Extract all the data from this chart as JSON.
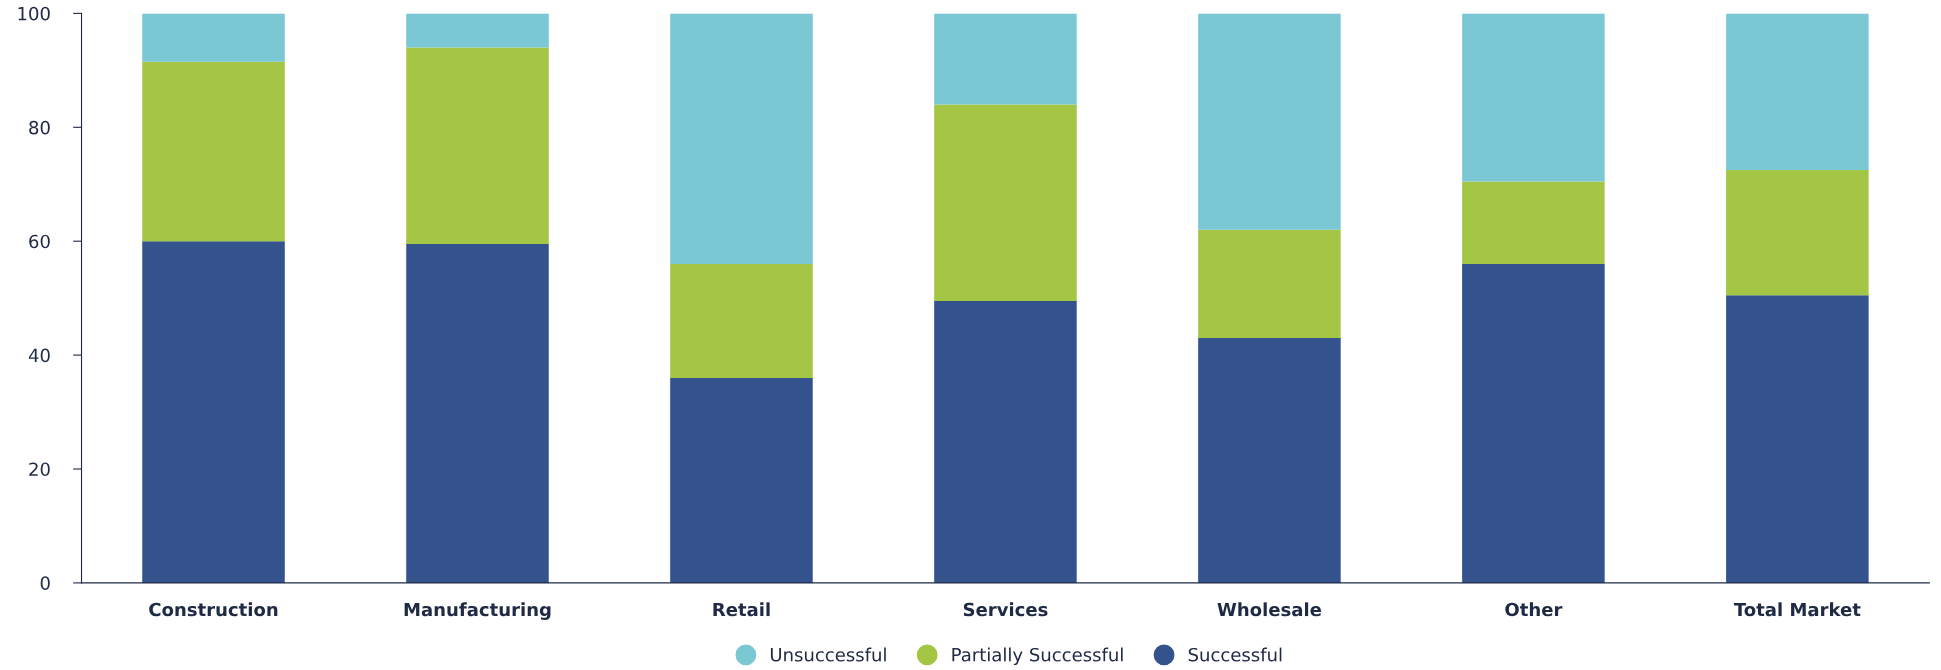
{
  "chart_data": {
    "type": "bar",
    "stacked": true,
    "categories": [
      "Construction",
      "Manufacturing",
      "Retail",
      "Services",
      "Wholesale",
      "Other",
      "Total Market"
    ],
    "series": [
      {
        "name": "Successful",
        "color": "#34538c",
        "values": [
          60,
          59.5,
          36,
          49.5,
          43,
          56,
          50.5
        ]
      },
      {
        "name": "Partially Successful",
        "color": "#a4c644",
        "values": [
          31.5,
          34.5,
          20,
          34.5,
          19,
          14.5,
          22
        ]
      },
      {
        "name": "Unsuccessful",
        "color": "#7ac8d3",
        "values": [
          8.5,
          6,
          44,
          16,
          38,
          29.5,
          27.5
        ]
      }
    ],
    "ylim": [
      0,
      100
    ],
    "yticks": [
      0,
      20,
      40,
      60,
      80,
      100
    ],
    "grid": false,
    "legend": "bottom",
    "marker": "circle"
  }
}
